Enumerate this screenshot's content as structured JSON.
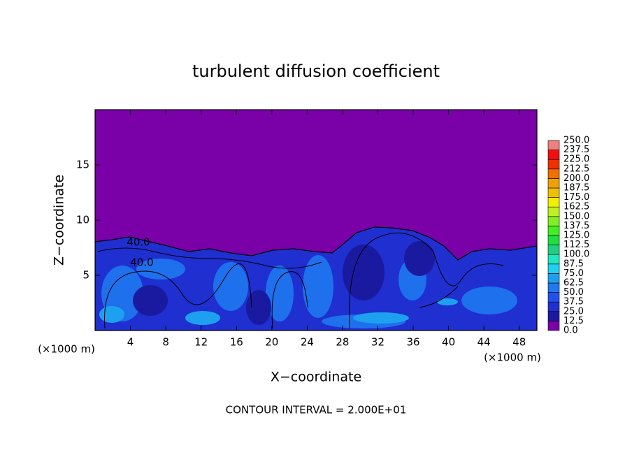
{
  "chart_data": {
    "type": "contour",
    "title": "turbulent diffusion coefficient",
    "xlabel": "X−coordinate",
    "ylabel": "Z−coordinate",
    "x_unit": "(×1000 m)",
    "y_unit": "(×1000 m)",
    "annotation": "CONTOUR INTERVAL = 2.000E+01",
    "contour_labels": [
      "40.0",
      "40.0"
    ],
    "xlim": [
      0,
      50
    ],
    "xticks": [
      4,
      8,
      12,
      16,
      20,
      24,
      28,
      32,
      36,
      40,
      44,
      48
    ],
    "ylim": [
      0,
      20
    ],
    "yticks": [
      5,
      10,
      15
    ],
    "levels": [
      {
        "value": 0,
        "label": "0.0"
      },
      {
        "value": 12.5,
        "label": "12.5"
      },
      {
        "value": 25,
        "label": "25.0"
      },
      {
        "value": 37.5,
        "label": "37.5"
      },
      {
        "value": 50,
        "label": "50.0"
      },
      {
        "value": 62.5,
        "label": "62.5"
      },
      {
        "value": 75,
        "label": "75.0"
      },
      {
        "value": 87.5,
        "label": "87.5"
      },
      {
        "value": 100,
        "label": "100.0"
      },
      {
        "value": 112.5,
        "label": "112.5"
      },
      {
        "value": 125,
        "label": "125.0"
      },
      {
        "value": 137.5,
        "label": "137.5"
      },
      {
        "value": 150,
        "label": "150.0"
      },
      {
        "value": 162.5,
        "label": "162.5"
      },
      {
        "value": 175,
        "label": "175.0"
      },
      {
        "value": 187.5,
        "label": "187.5"
      },
      {
        "value": 200,
        "label": "200.0"
      },
      {
        "value": 212.5,
        "label": "212.5"
      },
      {
        "value": 225,
        "label": "225.0"
      },
      {
        "value": 237.5,
        "label": "237.5"
      },
      {
        "value": 250,
        "label": "250.0"
      }
    ],
    "colors": [
      "#7a00a8",
      "#1a1aa0",
      "#1f2fd0",
      "#2050f0",
      "#1e78f0",
      "#1ea0f0",
      "#20d0f0",
      "#20e8c0",
      "#20d080",
      "#20e040",
      "#40f020",
      "#80f020",
      "#c0f020",
      "#f0f000",
      "#f0c000",
      "#f0a000",
      "#f07000",
      "#f03000",
      "#f01010",
      "#f08080"
    ]
  }
}
